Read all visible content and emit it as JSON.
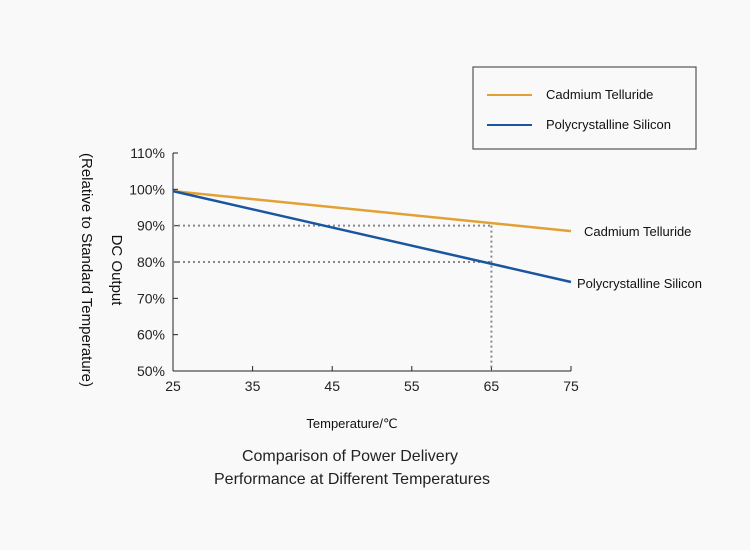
{
  "chart_data": {
    "type": "line",
    "title_lines": [
      "Comparison of Power Delivery",
      "Performance at Different Temperatures"
    ],
    "xlabel": "Temperature/℃",
    "ylabel_lines": [
      "DC Output",
      "(Relative to Standard Temperature)"
    ],
    "xlim": [
      25,
      75
    ],
    "ylim": [
      50,
      110
    ],
    "x_ticks": [
      25,
      35,
      45,
      55,
      65,
      75
    ],
    "y_ticks": [
      50,
      60,
      70,
      80,
      90,
      100,
      110
    ],
    "y_tick_labels": [
      "50%",
      "60%",
      "70%",
      "80%",
      "90%",
      "100%",
      "110%"
    ],
    "series": [
      {
        "name": "Cadmium Telluride",
        "color": "#e3a034",
        "x": [
          25,
          75
        ],
        "y": [
          99.5,
          88.5
        ]
      },
      {
        "name": "Polycrystalline Silicon",
        "color": "#1a56a0",
        "x": [
          25,
          75
        ],
        "y": [
          99.5,
          74.5
        ]
      }
    ],
    "reference_lines": [
      {
        "x": 65,
        "y": 90
      },
      {
        "x": 65,
        "y": 80
      }
    ],
    "legend_position": "top-right"
  }
}
